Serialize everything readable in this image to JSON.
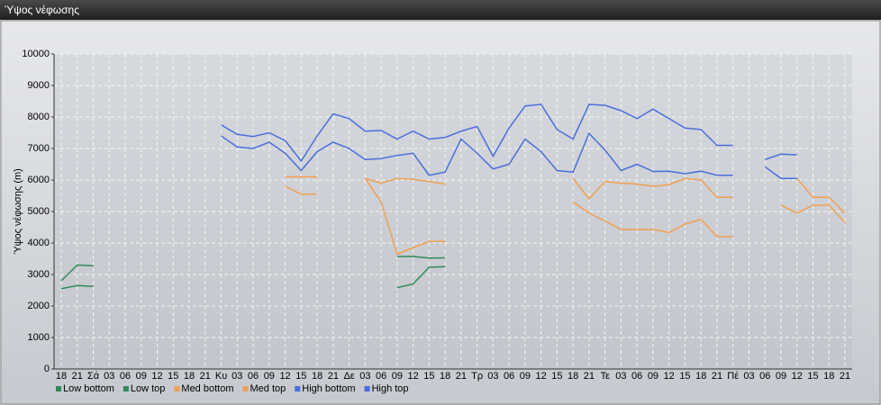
{
  "header": {
    "title": "Ύψος νέφωσης"
  },
  "chart_data": {
    "type": "line",
    "y_label": "Ύψος νέφωσης (m)",
    "categories": [
      "18",
      "21",
      "Σά",
      "03",
      "06",
      "09",
      "12",
      "15",
      "18",
      "21",
      "Κυ",
      "03",
      "06",
      "09",
      "12",
      "15",
      "18",
      "21",
      "Δε",
      "03",
      "06",
      "09",
      "12",
      "15",
      "18",
      "21",
      "Τρ",
      "03",
      "06",
      "09",
      "12",
      "15",
      "18",
      "21",
      "Τε",
      "03",
      "06",
      "09",
      "12",
      "15",
      "18",
      "21",
      "Πέ",
      "03",
      "06",
      "09",
      "12",
      "15",
      "18",
      "21"
    ],
    "ylim": [
      0,
      10000
    ],
    "yticks": [
      0,
      1000,
      2000,
      3000,
      4000,
      5000,
      6000,
      7000,
      8000,
      9000,
      10000
    ],
    "grid": true,
    "series": [
      {
        "name": "Low bottom",
        "color": "#2e8b57",
        "values": [
          2550,
          2650,
          2620,
          null,
          null,
          null,
          null,
          null,
          null,
          null,
          null,
          null,
          null,
          null,
          null,
          null,
          null,
          null,
          null,
          null,
          null,
          2580,
          2700,
          3230,
          3250,
          null,
          null,
          null,
          null,
          null,
          null,
          null,
          null,
          null,
          null,
          null,
          null,
          null,
          null,
          null,
          null,
          null,
          null,
          null,
          null,
          null,
          null,
          null,
          null,
          null
        ]
      },
      {
        "name": "Low top",
        "color": "#2e8b57",
        "values": [
          2800,
          3300,
          3280,
          null,
          null,
          null,
          null,
          null,
          null,
          null,
          null,
          null,
          null,
          null,
          null,
          null,
          null,
          null,
          null,
          null,
          null,
          3570,
          3570,
          3520,
          3530,
          null,
          null,
          null,
          null,
          null,
          null,
          null,
          null,
          null,
          null,
          null,
          null,
          null,
          null,
          null,
          null,
          null,
          null,
          null,
          null,
          null,
          null,
          null,
          null,
          null
        ]
      },
      {
        "name": "Med bottom",
        "color": "#f0a050",
        "values": [
          null,
          null,
          null,
          null,
          null,
          null,
          null,
          null,
          null,
          null,
          null,
          null,
          null,
          null,
          5800,
          5550,
          5550,
          null,
          null,
          6050,
          5300,
          3650,
          3850,
          4050,
          4050,
          null,
          null,
          null,
          null,
          null,
          null,
          null,
          5300,
          4950,
          4700,
          4430,
          4430,
          4430,
          4330,
          4600,
          4750,
          4200,
          4200,
          null,
          null,
          5200,
          4950,
          5200,
          5200,
          4650
        ]
      },
      {
        "name": "Med top",
        "color": "#f0a050",
        "values": [
          null,
          null,
          null,
          null,
          null,
          null,
          null,
          null,
          null,
          null,
          null,
          null,
          null,
          null,
          6100,
          6100,
          6100,
          null,
          null,
          6050,
          5900,
          6050,
          6020,
          5950,
          5870,
          null,
          null,
          null,
          null,
          null,
          null,
          null,
          6050,
          5400,
          5950,
          5900,
          5870,
          5800,
          5850,
          6050,
          6000,
          5450,
          5450,
          null,
          null,
          6050,
          6050,
          5450,
          5450,
          4950
        ]
      },
      {
        "name": "High bottom",
        "color": "#4a6fdc",
        "values": [
          null,
          null,
          null,
          null,
          null,
          null,
          null,
          null,
          null,
          null,
          7400,
          7050,
          7000,
          7200,
          6850,
          6300,
          6900,
          7200,
          7000,
          6650,
          6680,
          6780,
          6850,
          6150,
          6250,
          7300,
          6850,
          6350,
          6500,
          7300,
          6900,
          6300,
          6250,
          7480,
          6950,
          6300,
          6500,
          6270,
          6280,
          6200,
          6280,
          6150,
          6150,
          null,
          6420,
          6050,
          6050,
          null,
          null,
          null
        ]
      },
      {
        "name": "High top",
        "color": "#4a6fdc",
        "values": [
          null,
          null,
          null,
          null,
          null,
          null,
          null,
          null,
          null,
          null,
          7750,
          7450,
          7380,
          7500,
          7250,
          6600,
          7400,
          8100,
          7950,
          7550,
          7570,
          7300,
          7550,
          7300,
          7350,
          7550,
          7700,
          6750,
          7650,
          8350,
          8400,
          7600,
          7300,
          8400,
          8370,
          8200,
          7950,
          8250,
          7950,
          7650,
          7600,
          7100,
          7100,
          null,
          6650,
          6820,
          6800,
          null,
          null,
          null
        ]
      }
    ]
  }
}
